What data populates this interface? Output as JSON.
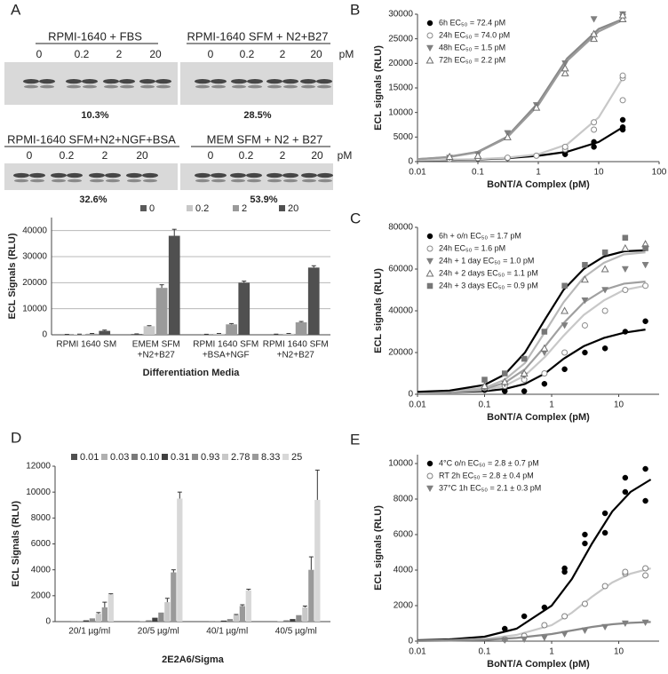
{
  "panel_labels": [
    "A",
    "B",
    "C",
    "D",
    "E"
  ],
  "blots": [
    {
      "title": "RPMI-1640 +  FBS",
      "lanes": [
        "0",
        "0.2",
        "2",
        "20"
      ],
      "percent": "10.3%"
    },
    {
      "title": "RPMI-1640 SFM + N2+B27",
      "lanes": [
        "0",
        "0.2",
        "2",
        "20"
      ],
      "unit": "pM",
      "percent": "28.5%"
    },
    {
      "title": "RPMI-1640 SFM+N2+NGF+BSA",
      "lanes": [
        "0",
        "0.2",
        "2",
        "20"
      ],
      "percent": "32.6%"
    },
    {
      "title": "MEM SFM + N2 + B27",
      "lanes": [
        "0",
        "0.2",
        "2",
        "20"
      ],
      "unit": "pM",
      "percent": "53.9%"
    }
  ],
  "chart_data": [
    {
      "type": "bar",
      "ylabel": "ECL Signals (RLU)",
      "xlabel": "Differentiation Media",
      "categories": [
        [
          "RPMI 1640 SM"
        ],
        [
          "EMEM SFM",
          "+N2+B27"
        ],
        [
          "RPMI 1640 SFM",
          "+BSA+NGF"
        ],
        [
          "RPMI 1640 SFM",
          "+N2+B27"
        ]
      ],
      "ylim": [
        0,
        45000
      ],
      "yticks": [
        0,
        10000,
        20000,
        30000,
        40000
      ],
      "grid": true,
      "series": [
        {
          "name": "0",
          "color": "#5a5a5a",
          "values": [
            100,
            300,
            150,
            200
          ],
          "errors": [
            50,
            50,
            50,
            50
          ]
        },
        {
          "name": "0.2",
          "color": "#c8c8c8",
          "values": [
            200,
            3300,
            400,
            400
          ],
          "errors": [
            50,
            200,
            100,
            100
          ]
        },
        {
          "name": "2",
          "color": "#9a9a9a",
          "values": [
            400,
            18000,
            4000,
            4800
          ],
          "errors": [
            100,
            1200,
            300,
            300
          ]
        },
        {
          "name": "20",
          "color": "#505050",
          "values": [
            1500,
            38000,
            20000,
            25800
          ],
          "errors": [
            300,
            2500,
            600,
            700
          ]
        }
      ]
    },
    {
      "type": "scatter",
      "log_x": true,
      "ylabel": "ECL signals (RLU)",
      "xlabel": "BoNT/A Complex (pM)",
      "xlim": [
        0.01,
        100
      ],
      "xticks": [
        0.01,
        0.1,
        1,
        10,
        100
      ],
      "ylim": [
        0,
        30000
      ],
      "yticks": [
        0,
        5000,
        10000,
        15000,
        20000,
        25000,
        30000
      ],
      "fit_x": [
        0.01,
        0.03,
        0.1,
        0.3,
        1,
        3,
        10,
        25
      ],
      "series": [
        {
          "name": "6h EC₅₀ = 72.4 pM",
          "color": "#000000",
          "line_color": "#000000",
          "marker": "circle",
          "x": [
            0.034,
            0.1,
            0.31,
            0.93,
            2.78,
            8.33,
            8.33,
            25,
            25,
            25
          ],
          "values": [
            500,
            600,
            700,
            1200,
            1500,
            3000,
            4000,
            6500,
            7000,
            8500
          ],
          "fit": [
            300,
            350,
            450,
            700,
            1200,
            2000,
            4000,
            7000
          ]
        },
        {
          "name": "24h EC₅₀ = 74.0 pM",
          "color": "#8a8a8a",
          "line_color": "#c8c8c8",
          "marker": "circle-open",
          "x": [
            0.034,
            0.1,
            0.31,
            0.93,
            2.78,
            2.78,
            8.33,
            8.33,
            25,
            25,
            25
          ],
          "values": [
            500,
            700,
            800,
            1200,
            2500,
            3000,
            6500,
            8000,
            12500,
            17000,
            17500
          ],
          "fit": [
            300,
            400,
            500,
            800,
            1500,
            3500,
            9000,
            17000
          ]
        },
        {
          "name": "48h EC₅₀ = 1.5 pM",
          "color": "#808080",
          "line_color": "#888888",
          "marker": "triangle-down",
          "x": [
            0.034,
            0.1,
            0.31,
            0.93,
            2.78,
            8.33,
            8.33,
            25,
            25
          ],
          "values": [
            800,
            1500,
            5800,
            11500,
            20000,
            25500,
            29000,
            29500,
            30000
          ],
          "fit": [
            500,
            900,
            2000,
            5000,
            12000,
            21000,
            27000,
            29000
          ]
        },
        {
          "name": "72h EC₅₀ = 2.2 pM",
          "color": "#6e6e6e",
          "line_color": "#9a9a9a",
          "marker": "triangle-up-open",
          "x": [
            0.034,
            0.1,
            0.31,
            0.93,
            2.78,
            2.78,
            8.33,
            8.33,
            25,
            25
          ],
          "values": [
            1000,
            1200,
            5000,
            11000,
            18000,
            19000,
            25000,
            26000,
            29000,
            29800
          ],
          "fit": [
            500,
            850,
            1900,
            4800,
            11500,
            20500,
            26500,
            28800
          ]
        }
      ]
    },
    {
      "type": "scatter",
      "log_x": true,
      "ylabel": "ECL signals (RLU)",
      "xlabel": "BoNT/A Complex (pM)",
      "xlim": [
        0.01,
        40
      ],
      "xticks": [
        0.01,
        0.1,
        1,
        10
      ],
      "ylim": [
        0,
        80000
      ],
      "yticks": [
        0,
        20000,
        40000,
        60000,
        80000
      ],
      "x": [
        0.1,
        0.2,
        0.39,
        0.78,
        1.56,
        3.13,
        6.25,
        12.5,
        25
      ],
      "fit_x": [
        0.01,
        0.03,
        0.1,
        0.2,
        0.4,
        0.8,
        1.5,
        3,
        6,
        12,
        25
      ],
      "series": [
        {
          "name": "6h + o/n EC₅₀ = 1.7 pM",
          "color": "#000000",
          "line_color": "#000000",
          "marker": "circle",
          "values": [
            2000,
            1500,
            1500,
            5000,
            12000,
            20000,
            22000,
            30000,
            35000
          ],
          "fit": [
            1000,
            1000,
            1500,
            2500,
            5000,
            10000,
            17000,
            23000,
            27000,
            29500,
            31000
          ]
        },
        {
          "name": "24h EC₅₀ = 1.6 pM",
          "color": "#8a8a8a",
          "line_color": "#c8c8c8",
          "marker": "circle-open",
          "values": [
            3000,
            4000,
            7000,
            10000,
            20000,
            33000,
            40000,
            50000,
            52000
          ],
          "fit": [
            1000,
            1200,
            2000,
            4000,
            9000,
            18000,
            28000,
            38000,
            45000,
            50000,
            52000
          ]
        },
        {
          "name": "24h + 1 day EC₅₀ = 1.0 pM",
          "color": "#808080",
          "line_color": "#a0a0a0",
          "marker": "triangle-down",
          "values": [
            3000,
            5000,
            9000,
            20000,
            33000,
            45000,
            50000,
            60000,
            62000
          ],
          "fit": [
            1000,
            1300,
            2500,
            5500,
            12000,
            23000,
            34000,
            44000,
            50000,
            53000,
            54000
          ]
        },
        {
          "name": "24h + 2 days EC₅₀ = 1.1 pM",
          "color": "#707070",
          "line_color": "#b8b8b8",
          "marker": "triangle-up-open",
          "values": [
            4000,
            6000,
            10000,
            22000,
            40000,
            55000,
            60000,
            70000,
            72000
          ],
          "fit": [
            1000,
            1500,
            3000,
            7000,
            15000,
            30000,
            44000,
            56000,
            63000,
            67000,
            68000
          ]
        },
        {
          "name": "24h + 3 days EC₅₀ = 0.9 pM",
          "color": "#777777",
          "line_color": "#000000",
          "marker": "square",
          "values": [
            7000,
            10000,
            17000,
            30000,
            52000,
            62000,
            68000,
            75000,
            70000
          ],
          "fit": [
            1200,
            1800,
            4500,
            9500,
            20000,
            36000,
            50000,
            60000,
            66000,
            68500,
            69000
          ]
        }
      ]
    },
    {
      "type": "bar",
      "ylabel": "ECL Signals (RLU)",
      "xlabel": "2E2A6/Sigma",
      "categories": [
        [
          "20/1 µg/ml"
        ],
        [
          "20/5 µg/ml"
        ],
        [
          "40/1 µg/ml"
        ],
        [
          "40/5 µg/ml"
        ]
      ],
      "ylim": [
        0,
        12000
      ],
      "yticks": [
        0,
        2000,
        4000,
        6000,
        8000,
        10000,
        12000
      ],
      "grid": false,
      "series": [
        {
          "name": "0.01",
          "color": "#505050",
          "values": [
            0,
            20,
            0,
            20
          ]
        },
        {
          "name": "0.03",
          "color": "#b0b0b0",
          "values": [
            10,
            50,
            10,
            40
          ]
        },
        {
          "name": "0.10",
          "color": "#7a7a7a",
          "values": [
            30,
            100,
            30,
            100
          ]
        },
        {
          "name": "0.31",
          "color": "#404040",
          "values": [
            100,
            300,
            80,
            200
          ]
        },
        {
          "name": "0.93",
          "color": "#8c8c8c",
          "values": [
            250,
            700,
            200,
            500
          ]
        },
        {
          "name": "2.78",
          "color": "#c8c8c8",
          "values": [
            600,
            1500,
            500,
            1100
          ],
          "errors": [
            100,
            300,
            50,
            100
          ]
        },
        {
          "name": "8.33",
          "color": "#9a9a9a",
          "values": [
            1100,
            3800,
            1200,
            4000
          ],
          "errors": [
            400,
            200,
            100,
            1000
          ]
        },
        {
          "name": "25",
          "color": "#d8d8d8",
          "values": [
            2100,
            9500,
            2400,
            9400
          ],
          "errors": [
            50,
            500,
            100,
            2300
          ]
        }
      ]
    },
    {
      "type": "scatter",
      "log_x": true,
      "ylabel": "ECL signals (RLU)",
      "xlabel": "BoNT/A Complex (pM)",
      "xlim": [
        0.01,
        40
      ],
      "xticks": [
        0.01,
        0.1,
        1,
        10
      ],
      "ylim": [
        0,
        10500
      ],
      "yticks": [
        0,
        2000,
        4000,
        6000,
        8000,
        10000
      ],
      "fit_x": [
        0.01,
        0.03,
        0.1,
        0.3,
        1,
        2,
        4,
        8,
        15,
        30
      ],
      "series": [
        {
          "name": "4°C o/n EC₅₀ = 2.8 ± 0.7 pM",
          "color": "#000000",
          "line_color": "#000000",
          "marker": "circle",
          "x": [
            0.2,
            0.39,
            0.78,
            1.56,
            1.56,
            3.13,
            3.13,
            6.25,
            6.25,
            12.5,
            12.5,
            25,
            25
          ],
          "values": [
            700,
            1400,
            1900,
            3900,
            4100,
            6000,
            5500,
            7200,
            6100,
            9200,
            8400,
            9700,
            7900
          ],
          "fit": [
            50,
            100,
            250,
            700,
            2000,
            3500,
            5500,
            7300,
            8400,
            9100
          ]
        },
        {
          "name": "RT 2h EC₅₀ = 2.8 ± 0.4 pM",
          "color": "#808080",
          "line_color": "#c8c8c8",
          "marker": "circle-open",
          "x": [
            0.2,
            0.39,
            0.78,
            1.56,
            3.13,
            6.25,
            12.5,
            12.5,
            25,
            25
          ],
          "values": [
            100,
            300,
            900,
            1400,
            2100,
            3100,
            3800,
            3900,
            4100,
            3700
          ],
          "fit": [
            20,
            50,
            120,
            350,
            900,
            1600,
            2500,
            3300,
            3800,
            4100
          ]
        },
        {
          "name": "37°C 1h EC₅₀ = 2.1 ± 0.3 pM",
          "color": "#808080",
          "line_color": "#888888",
          "marker": "triangle-down",
          "x": [
            0.2,
            0.39,
            0.78,
            1.56,
            3.13,
            6.25,
            12.5,
            25
          ],
          "values": [
            50,
            100,
            200,
            400,
            600,
            800,
            1000,
            1050
          ],
          "fit": [
            10,
            30,
            70,
            180,
            400,
            600,
            800,
            950,
            1030,
            1080
          ]
        }
      ]
    }
  ]
}
